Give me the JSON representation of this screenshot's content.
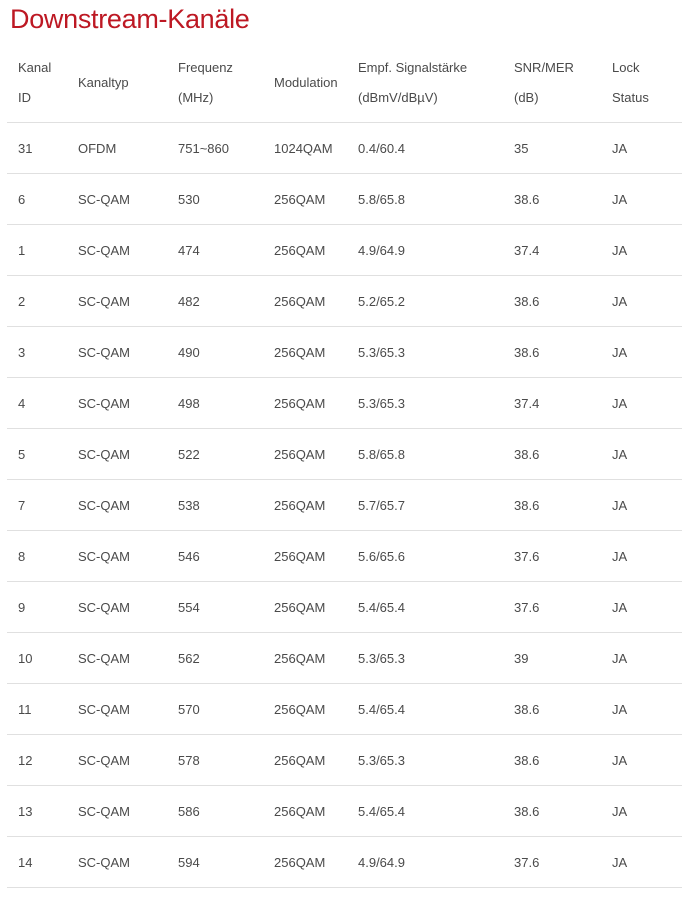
{
  "page": {
    "title": "Downstream-Kanäle"
  },
  "colors": {
    "title_red": "#bd1823",
    "body_text": "#4a4a4a",
    "divider": "#e0e0e0"
  },
  "table": {
    "column_names": [
      "kanal-id",
      "kanaltyp",
      "frequenz",
      "modulation",
      "signalstaerke",
      "snr-mer",
      "lock-status"
    ],
    "columns": [
      {
        "line1": "Kanal",
        "line2": "ID"
      },
      {
        "line1": "Kanaltyp",
        "line2": ""
      },
      {
        "line1": "Frequenz",
        "line2": "(MHz)"
      },
      {
        "line1": "Modulation",
        "line2": ""
      },
      {
        "line1": "Empf. Signalstärke",
        "line2": "(dBmV/dBµV)"
      },
      {
        "line1": "SNR/MER",
        "line2": "(dB)"
      },
      {
        "line1": "Lock",
        "line2": "Status"
      }
    ],
    "rows": [
      [
        "31",
        "OFDM",
        "751~860",
        "1024QAM",
        "0.4/60.4",
        "35",
        "JA"
      ],
      [
        "6",
        "SC-QAM",
        "530",
        "256QAM",
        "5.8/65.8",
        "38.6",
        "JA"
      ],
      [
        "1",
        "SC-QAM",
        "474",
        "256QAM",
        "4.9/64.9",
        "37.4",
        "JA"
      ],
      [
        "2",
        "SC-QAM",
        "482",
        "256QAM",
        "5.2/65.2",
        "38.6",
        "JA"
      ],
      [
        "3",
        "SC-QAM",
        "490",
        "256QAM",
        "5.3/65.3",
        "38.6",
        "JA"
      ],
      [
        "4",
        "SC-QAM",
        "498",
        "256QAM",
        "5.3/65.3",
        "37.4",
        "JA"
      ],
      [
        "5",
        "SC-QAM",
        "522",
        "256QAM",
        "5.8/65.8",
        "38.6",
        "JA"
      ],
      [
        "7",
        "SC-QAM",
        "538",
        "256QAM",
        "5.7/65.7",
        "38.6",
        "JA"
      ],
      [
        "8",
        "SC-QAM",
        "546",
        "256QAM",
        "5.6/65.6",
        "37.6",
        "JA"
      ],
      [
        "9",
        "SC-QAM",
        "554",
        "256QAM",
        "5.4/65.4",
        "37.6",
        "JA"
      ],
      [
        "10",
        "SC-QAM",
        "562",
        "256QAM",
        "5.3/65.3",
        "39",
        "JA"
      ],
      [
        "11",
        "SC-QAM",
        "570",
        "256QAM",
        "5.4/65.4",
        "38.6",
        "JA"
      ],
      [
        "12",
        "SC-QAM",
        "578",
        "256QAM",
        "5.3/65.3",
        "38.6",
        "JA"
      ],
      [
        "13",
        "SC-QAM",
        "586",
        "256QAM",
        "5.4/65.4",
        "38.6",
        "JA"
      ],
      [
        "14",
        "SC-QAM",
        "594",
        "256QAM",
        "4.9/64.9",
        "37.6",
        "JA"
      ]
    ]
  }
}
